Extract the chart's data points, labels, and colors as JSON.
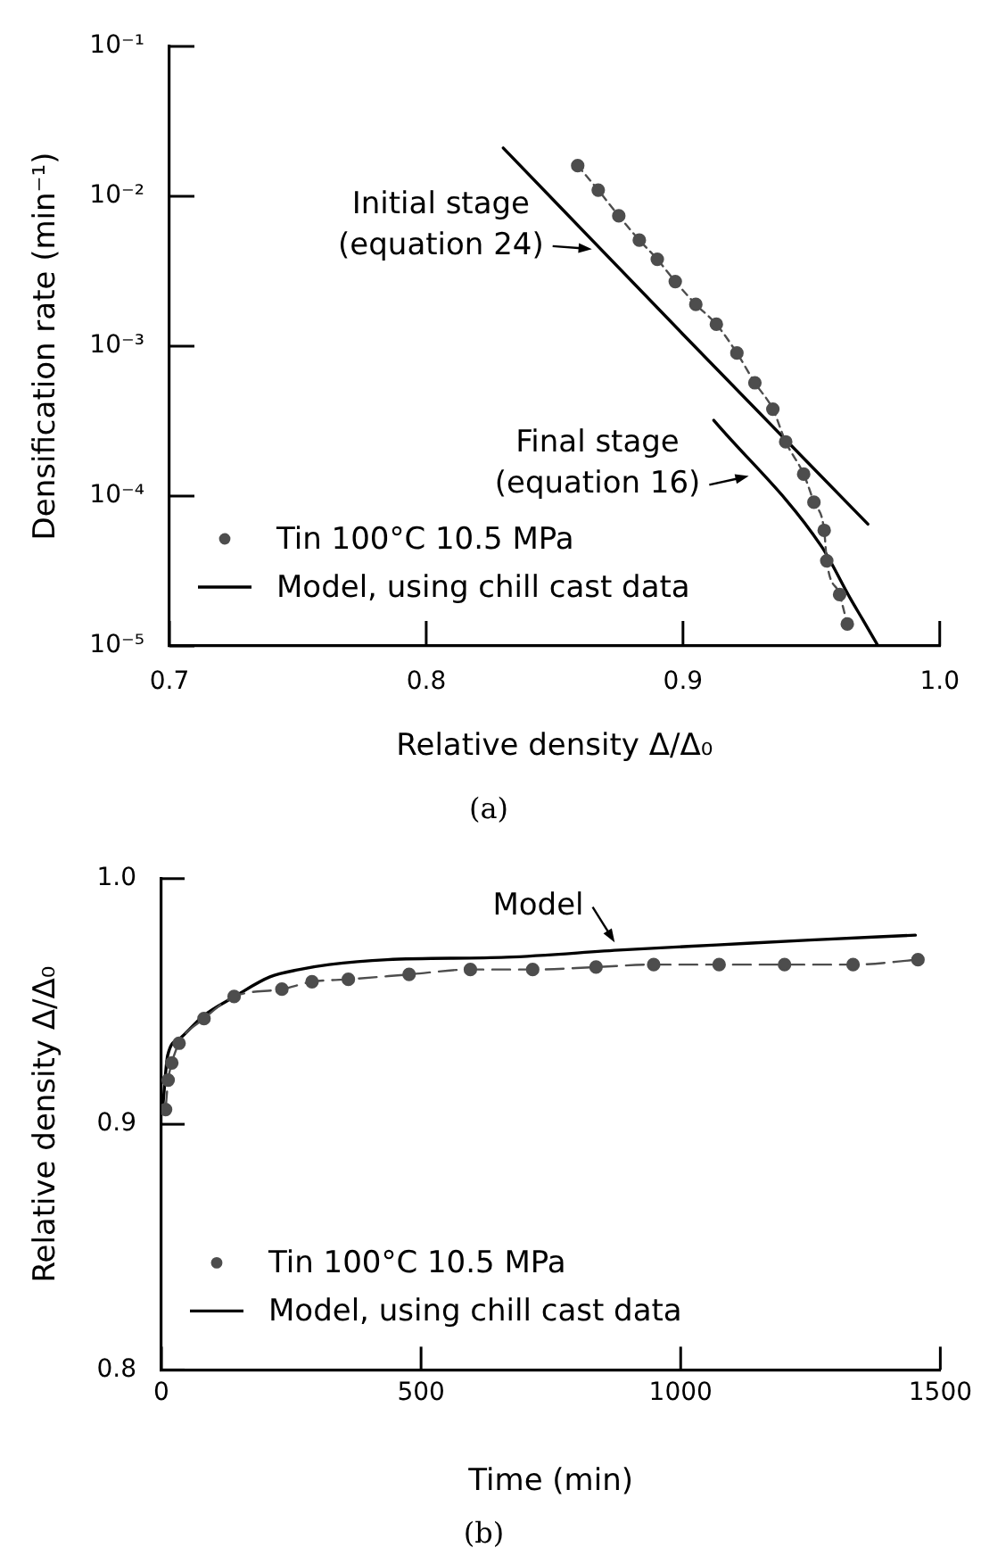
{
  "chart_data": [
    {
      "type": "line",
      "title": "(a)",
      "xlabel": "Relative density Δ/Δ₀",
      "ylabel": "Densification rate (min⁻¹)",
      "log": "y",
      "xlim": [
        0.7,
        1.0
      ],
      "xticks": [
        0.7,
        0.8,
        0.9,
        {
          "value": 1.0,
          "label": "1.0"
        }
      ],
      "ylim": [
        1e-05,
        0.1
      ],
      "yticks": [
        {
          "value": 0.1,
          "label": "10⁻¹"
        },
        {
          "value": 0.01,
          "label": "10⁻²"
        },
        {
          "value": 0.001,
          "label": "10⁻³"
        },
        {
          "value": 0.0001,
          "label": "10⁻⁴"
        },
        {
          "value": 1e-05,
          "label": "10⁻⁵"
        }
      ],
      "legend": "bottom left",
      "series": [
        {
          "name": "Tin 100°C 10.5 MPa",
          "color": "#4d4d4d",
          "marker": "circle",
          "line_style": "dashed",
          "x": [
            0.859,
            0.867,
            0.875,
            0.883,
            0.89,
            0.897,
            0.905,
            0.913,
            0.921,
            0.928,
            0.935,
            0.94,
            0.947,
            0.951,
            0.955,
            0.956,
            0.961,
            0.964
          ],
          "values": [
            0.016,
            0.011,
            0.0074,
            0.0051,
            0.0038,
            0.0027,
            0.0019,
            0.0014,
            0.0009,
            0.00057,
            0.00038,
            0.00023,
            0.00014,
            9.1e-05,
            5.9e-05,
            3.7e-05,
            2.2e-05,
            1.4e-05
          ]
        },
        {
          "name": "Model, using chill cast data",
          "color": "#000000",
          "marker": "none",
          "line_style": "solid",
          "x": [
            0.83,
            0.9,
            0.972
          ],
          "values": [
            0.021,
            0.0012,
            6.5e-05
          ]
        },
        {
          "color": "#000000",
          "marker": "none",
          "line_style": "solid",
          "x": [
            0.912,
            0.954,
            0.965,
            0.97,
            0.976
          ],
          "values": [
            0.00032,
            4.6e-05,
            2.1e-05,
            1.5e-05,
            1e-05
          ]
        }
      ],
      "annotations": [
        {
          "text": "Initial stage (equation 24)",
          "x": 0.868,
          "y": 0.0044
        },
        {
          "text": "Final stage (equation 16)",
          "x": 0.929,
          "y": 0.00014
        }
      ]
    },
    {
      "type": "line",
      "title": "(b)",
      "xlabel": "Time (min)",
      "ylabel": "Relative density Δ/Δ₀",
      "xlim": [
        0,
        1500
      ],
      "xticks": [
        0,
        500,
        1000,
        1500
      ],
      "ylim": [
        0.8,
        1.0
      ],
      "yticks": [
        0.8,
        0.9,
        {
          "value": 1.0,
          "label": "1.0"
        }
      ],
      "legend": "bottom left",
      "series": [
        {
          "name": "Tin 100°C 10.5 MPa",
          "color": "#4d4d4d",
          "marker": "circle",
          "line_style": "dashed",
          "x": [
            8,
            13,
            20,
            34,
            82,
            140,
            232,
            290,
            360,
            477,
            595,
            715,
            837,
            948,
            1074,
            1200,
            1332,
            1457
          ],
          "values": [
            0.906,
            0.918,
            0.925,
            0.933,
            0.943,
            0.952,
            0.955,
            0.958,
            0.959,
            0.961,
            0.963,
            0.963,
            0.964,
            0.965,
            0.965,
            0.965,
            0.965,
            0.967
          ]
        },
        {
          "name": "Model, using chill cast data",
          "color": "#000000",
          "marker": "none",
          "line_style": "solid",
          "x": [
            3,
            12,
            36,
            80,
            141,
            209,
            266,
            323,
            435,
            664,
            889,
            1069,
            1249,
            1452
          ],
          "values": [
            0.908,
            0.928,
            0.935,
            0.944,
            0.952,
            0.96,
            0.963,
            0.965,
            0.967,
            0.968,
            0.971,
            0.973,
            0.975,
            0.977
          ]
        }
      ],
      "annotations": [
        {
          "text": "Model",
          "x": 882,
          "y": 0.971
        }
      ]
    }
  ]
}
